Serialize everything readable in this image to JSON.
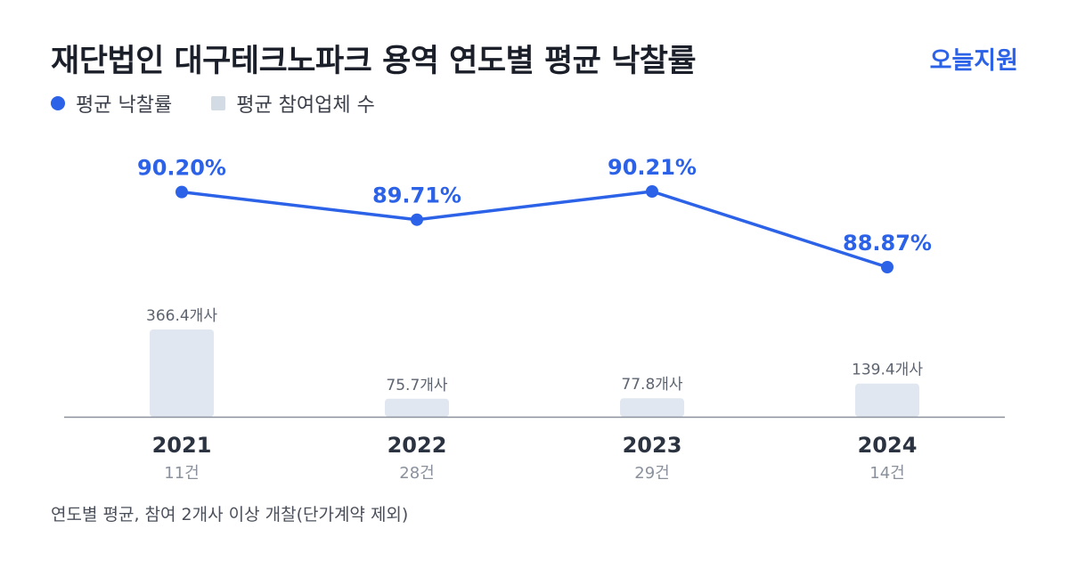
{
  "header": {
    "title": "재단법인 대구테크노파크 용역 연도별 평균 낙찰률",
    "brand": "오늘지원"
  },
  "legend": {
    "rate_label": "평균 낙찰률",
    "bidders_label": "평균 참여업체 수"
  },
  "footnote": "연도별 평균, 참여 2개사 이상 개찰(단가계약 제외)",
  "colors": {
    "rate": "#2c62e8",
    "bar": "#e1e7f0",
    "axis": "#8a919c",
    "year": "#2b3340",
    "count": "#8a919c",
    "bar_label": "#5d6470"
  },
  "chart_data": {
    "type": "bar",
    "categories": [
      "2021",
      "2022",
      "2023",
      "2024"
    ],
    "sublabels": [
      "11건",
      "28건",
      "29건",
      "14건"
    ],
    "series": [
      {
        "name": "평균 낙찰률",
        "type": "line",
        "values": [
          90.2,
          89.71,
          90.21,
          88.87
        ],
        "labels": [
          "90.20%",
          "89.71%",
          "90.21%",
          "88.87%"
        ]
      },
      {
        "name": "평균 참여업체 수",
        "type": "bar",
        "values": [
          366.4,
          75.7,
          77.8,
          139.4
        ],
        "labels": [
          "366.4개사",
          "75.7개사",
          "77.8개사",
          "139.4개사"
        ]
      }
    ]
  }
}
